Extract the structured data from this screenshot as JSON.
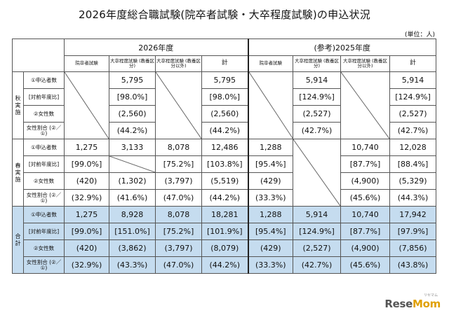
{
  "title": "2026年度総合職試験(院卒者試験・大卒程度試験)の申込状況",
  "unit": "(単位：人)",
  "headers": {
    "year2026": "2026年度",
    "year2025": "(参考)2025年度",
    "cols": [
      "院卒者試験",
      "大卒程度試験\n(教養区分)",
      "大卒程度試験\n(教養区分以外)",
      "計"
    ]
  },
  "groups": {
    "autumn": "秋\n実\n施",
    "spring": "春\n実\n施",
    "total": "合\n計"
  },
  "row_labels": [
    "①申込者数",
    "[対前年度比]",
    "②女性数",
    "女性割合\n(②／①)"
  ],
  "rows": {
    "autumn": [
      [
        "",
        "5,795",
        "",
        "5,795",
        "",
        "5,914",
        "",
        "5,914"
      ],
      [
        "",
        "[98.0%]",
        "",
        "[98.0%]",
        "",
        "[124.9%]",
        "",
        "[124.9%]"
      ],
      [
        "",
        "(2,560)",
        "",
        "(2,560)",
        "",
        "(2,527)",
        "",
        "(2,527)"
      ],
      [
        "",
        "(44.2%)",
        "",
        "(44.2%)",
        "",
        "(42.7%)",
        "",
        "(42.7%)"
      ]
    ],
    "spring": [
      [
        "1,275",
        "3,133",
        "8,078",
        "12,486",
        "1,288",
        "",
        "10,740",
        "12,028"
      ],
      [
        "[99.0%]",
        "",
        "[75.2%]",
        "[103.8%]",
        "[95.4%]",
        "",
        "[87.7%]",
        "[88.4%]"
      ],
      [
        "(420)",
        "(1,302)",
        "(3,797)",
        "(5,519)",
        "(429)",
        "",
        "(4,900)",
        "(5,329)"
      ],
      [
        "(32.9%)",
        "(41.6%)",
        "(47.0%)",
        "(44.2%)",
        "(33.3%)",
        "",
        "(45.6%)",
        "(44.3%)"
      ]
    ],
    "total": [
      [
        "1,275",
        "8,928",
        "8,078",
        "18,281",
        "1,288",
        "5,914",
        "10,740",
        "17,942"
      ],
      [
        "[99.0%]",
        "[151.0%]",
        "[75.2%]",
        "[101.9%]",
        "[95.4%]",
        "[124.9%]",
        "[87.7%]",
        "[97.9%]"
      ],
      [
        "(420)",
        "(3,862)",
        "(3,797)",
        "(8,079)",
        "(429)",
        "(2,527)",
        "(4,900)",
        "(7,856)"
      ],
      [
        "(32.9%)",
        "(43.3%)",
        "(47.0%)",
        "(44.2%)",
        "(33.3%)",
        "(42.7%)",
        "(45.6%)",
        "(43.8%)"
      ]
    ]
  },
  "logo": {
    "part1": "Rese",
    "part2": "Mom",
    "small": "リセマム"
  },
  "colors": {
    "highlight": "#c5dcef",
    "border": "#555555"
  }
}
